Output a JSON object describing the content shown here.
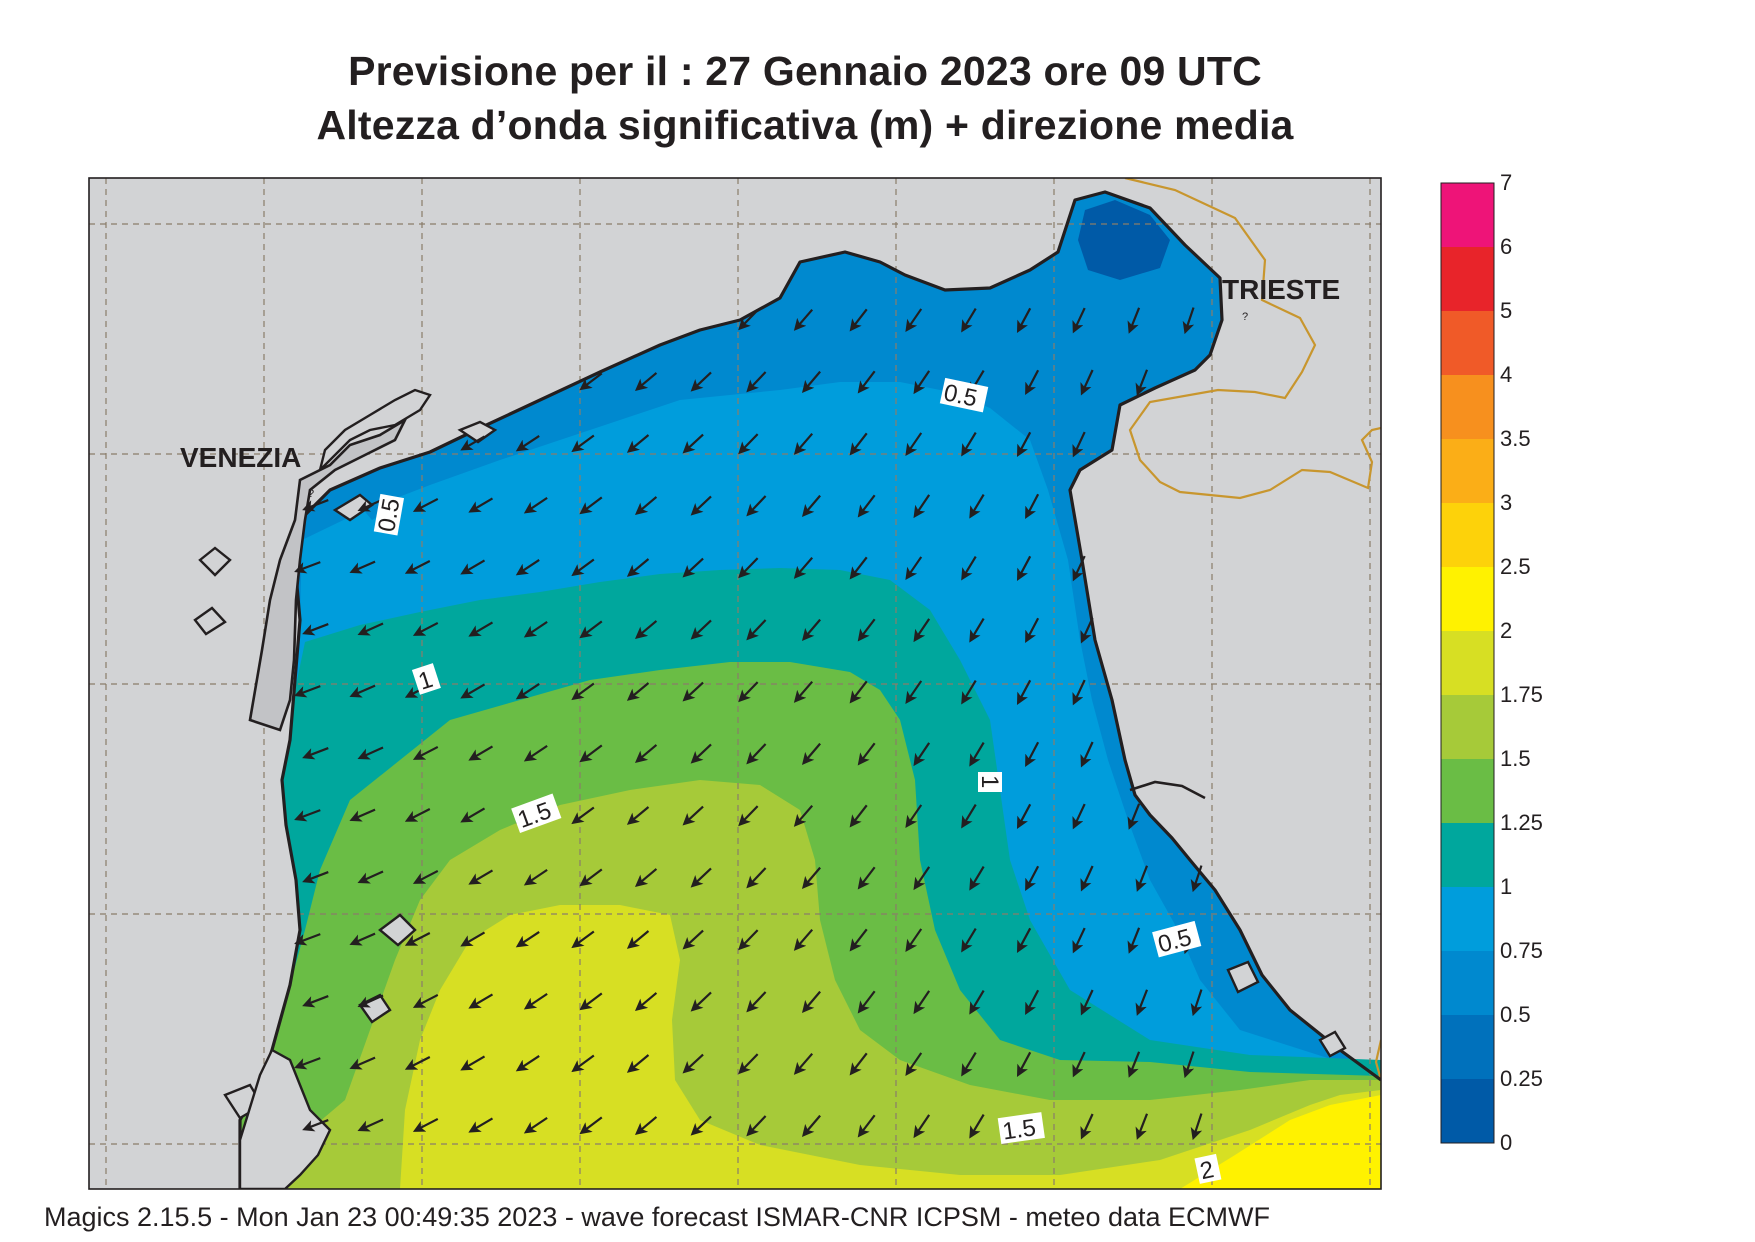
{
  "title": {
    "line1": "Previsione per il  :  27  Gennaio  2023   ore 09 UTC",
    "line2": "Altezza d’onda significativa (m) + direzione media"
  },
  "places": {
    "venezia": "VENEZIA",
    "trieste": "TRIESTE"
  },
  "contour_labels": {
    "venice_coast": "0.5",
    "north_half": "0.5",
    "one_west": "1",
    "one_east": "1",
    "one_five_west": "1.5",
    "half_east": "0.5",
    "one_five_south": "1.5",
    "two_south": "2"
  },
  "legend": {
    "title": "",
    "levels": [
      "7",
      "6",
      "5",
      "4",
      "3.5",
      "3",
      "2.5",
      "2",
      "1.75",
      "1.5",
      "1.25",
      "1",
      "0.75",
      "0.5",
      "0.25",
      "0"
    ],
    "colors": [
      "#ee1478",
      "#e8242a",
      "#f05a28",
      "#f7901e",
      "#fbae17",
      "#fdd20a",
      "#fff200",
      "#d7df23",
      "#a6ca39",
      "#6abd45",
      "#00a79d",
      "#009ddc",
      "#0089cf",
      "#0071bc",
      "#005aa7"
    ]
  },
  "map_colors": {
    "land": "#d2d3d5",
    "coast": "#231f20",
    "border": "#c8962e",
    "grid": "#8a7d6a"
  },
  "footer": "Magics 2.15.5 - Mon Jan 23 00:49:35 2023 - wave forecast  ISMAR-CNR  ICPSM - meteo data   ECMWF"
}
